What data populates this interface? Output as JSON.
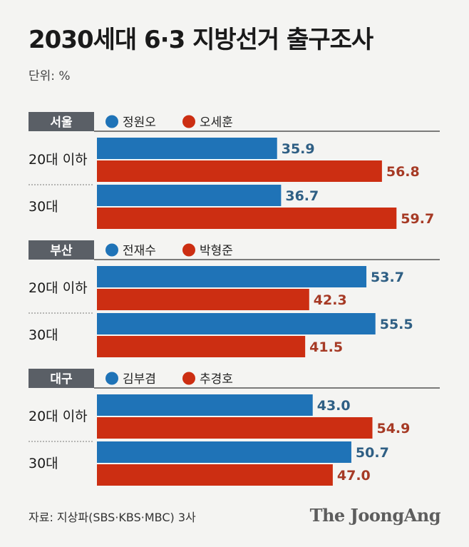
{
  "title": "2030세대 6·3 지방선거 출구조사",
  "unit_label": "단위: %",
  "source": "자료: 지상파(SBS·KBS·MBC) 3사",
  "publisher": "The JoongAng",
  "colors": {
    "series1": "#1f73b7",
    "series2": "#cc2e12",
    "region_tag": "#5a5f66",
    "label1": "#2f5f84",
    "label2": "#a63a25"
  },
  "chart_data": {
    "type": "bar",
    "orientation": "horizontal",
    "xlim": [
      0,
      60
    ],
    "panels": [
      {
        "region": "서울",
        "series": [
          {
            "name": "정원오",
            "values": [
              35.9,
              36.7
            ]
          },
          {
            "name": "오세훈",
            "values": [
              56.8,
              59.7
            ]
          }
        ],
        "categories": [
          "20대 이하",
          "30대"
        ],
        "value_labels": [
          [
            "35.9",
            "36.7"
          ],
          [
            "56.8",
            "59.7"
          ]
        ]
      },
      {
        "region": "부산",
        "series": [
          {
            "name": "전재수",
            "values": [
              53.7,
              55.5
            ]
          },
          {
            "name": "박형준",
            "values": [
              42.3,
              41.5
            ]
          }
        ],
        "categories": [
          "20대 이하",
          "30대"
        ],
        "value_labels": [
          [
            "53.7",
            "55.5"
          ],
          [
            "42.3",
            "41.5"
          ]
        ]
      },
      {
        "region": "대구",
        "series": [
          {
            "name": "김부겸",
            "values": [
              43.0,
              50.7
            ]
          },
          {
            "name": "추경호",
            "values": [
              54.9,
              47.0
            ]
          }
        ],
        "categories": [
          "20대 이하",
          "30대"
        ],
        "value_labels": [
          [
            "43.0",
            "50.7"
          ],
          [
            "54.9",
            "47.0"
          ]
        ]
      }
    ]
  }
}
